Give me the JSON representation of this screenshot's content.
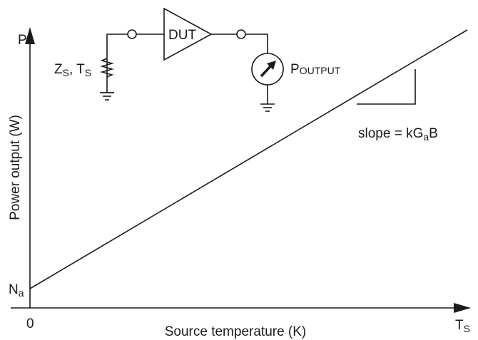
{
  "y_axis": {
    "letter": "P",
    "label": "Power output (W)",
    "intercept": "N",
    "intercept_sub": "a"
  },
  "x_axis": {
    "origin": "0",
    "label": "Source temperature (K)",
    "letter": "T",
    "letter_sub": "S"
  },
  "circuit": {
    "source": {
      "z": "Z",
      "z_sub": "S",
      "t": ", T",
      "t_sub": "S"
    },
    "device": "DUT",
    "meter": {
      "p": "P",
      "p_sub": "OUTPUT"
    }
  },
  "slope": {
    "text": "slope = kG",
    "sub": "a",
    "end": "B"
  }
}
